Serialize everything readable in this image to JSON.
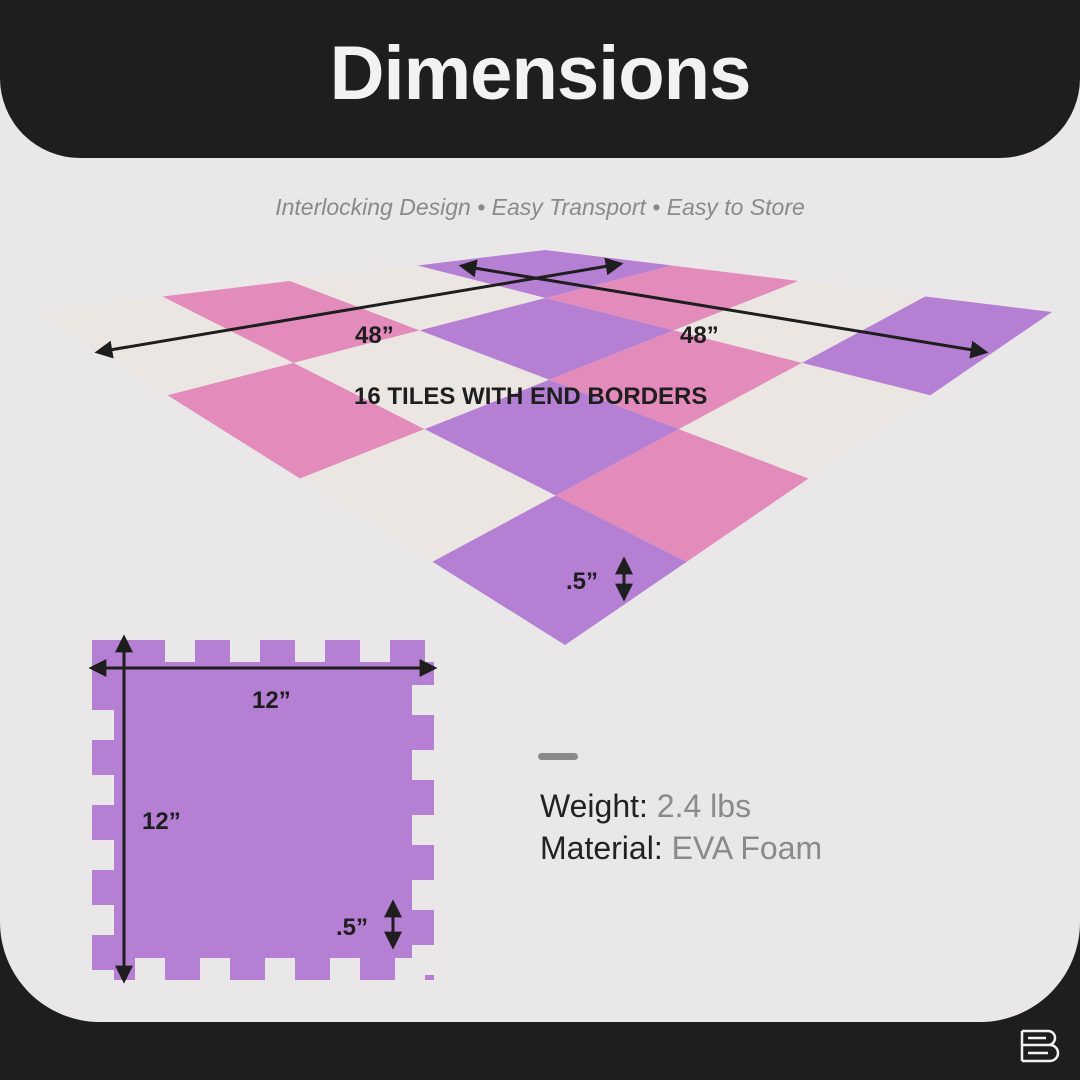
{
  "header": {
    "title": "Dimensions"
  },
  "subtitle": "Interlocking Design • Easy Transport • Easy to Store",
  "mat": {
    "width_label": "48”",
    "length_label": "48”",
    "caption": "16 TILES WITH END BORDERS",
    "thickness_label": ".5”"
  },
  "tile": {
    "width_label": "12”",
    "height_label": "12”",
    "thickness_label": ".5”"
  },
  "specs": [
    {
      "label": "Weight",
      "value": "2.4 lbs"
    },
    {
      "label": "Material",
      "value": "EVA Foam"
    }
  ],
  "colors": {
    "purple": "#b57fd4",
    "pink": "#e38cbc",
    "cream": "#ece6e3",
    "dark": "#1e1e1e",
    "background": "#e9e7e8"
  },
  "logo": "B"
}
